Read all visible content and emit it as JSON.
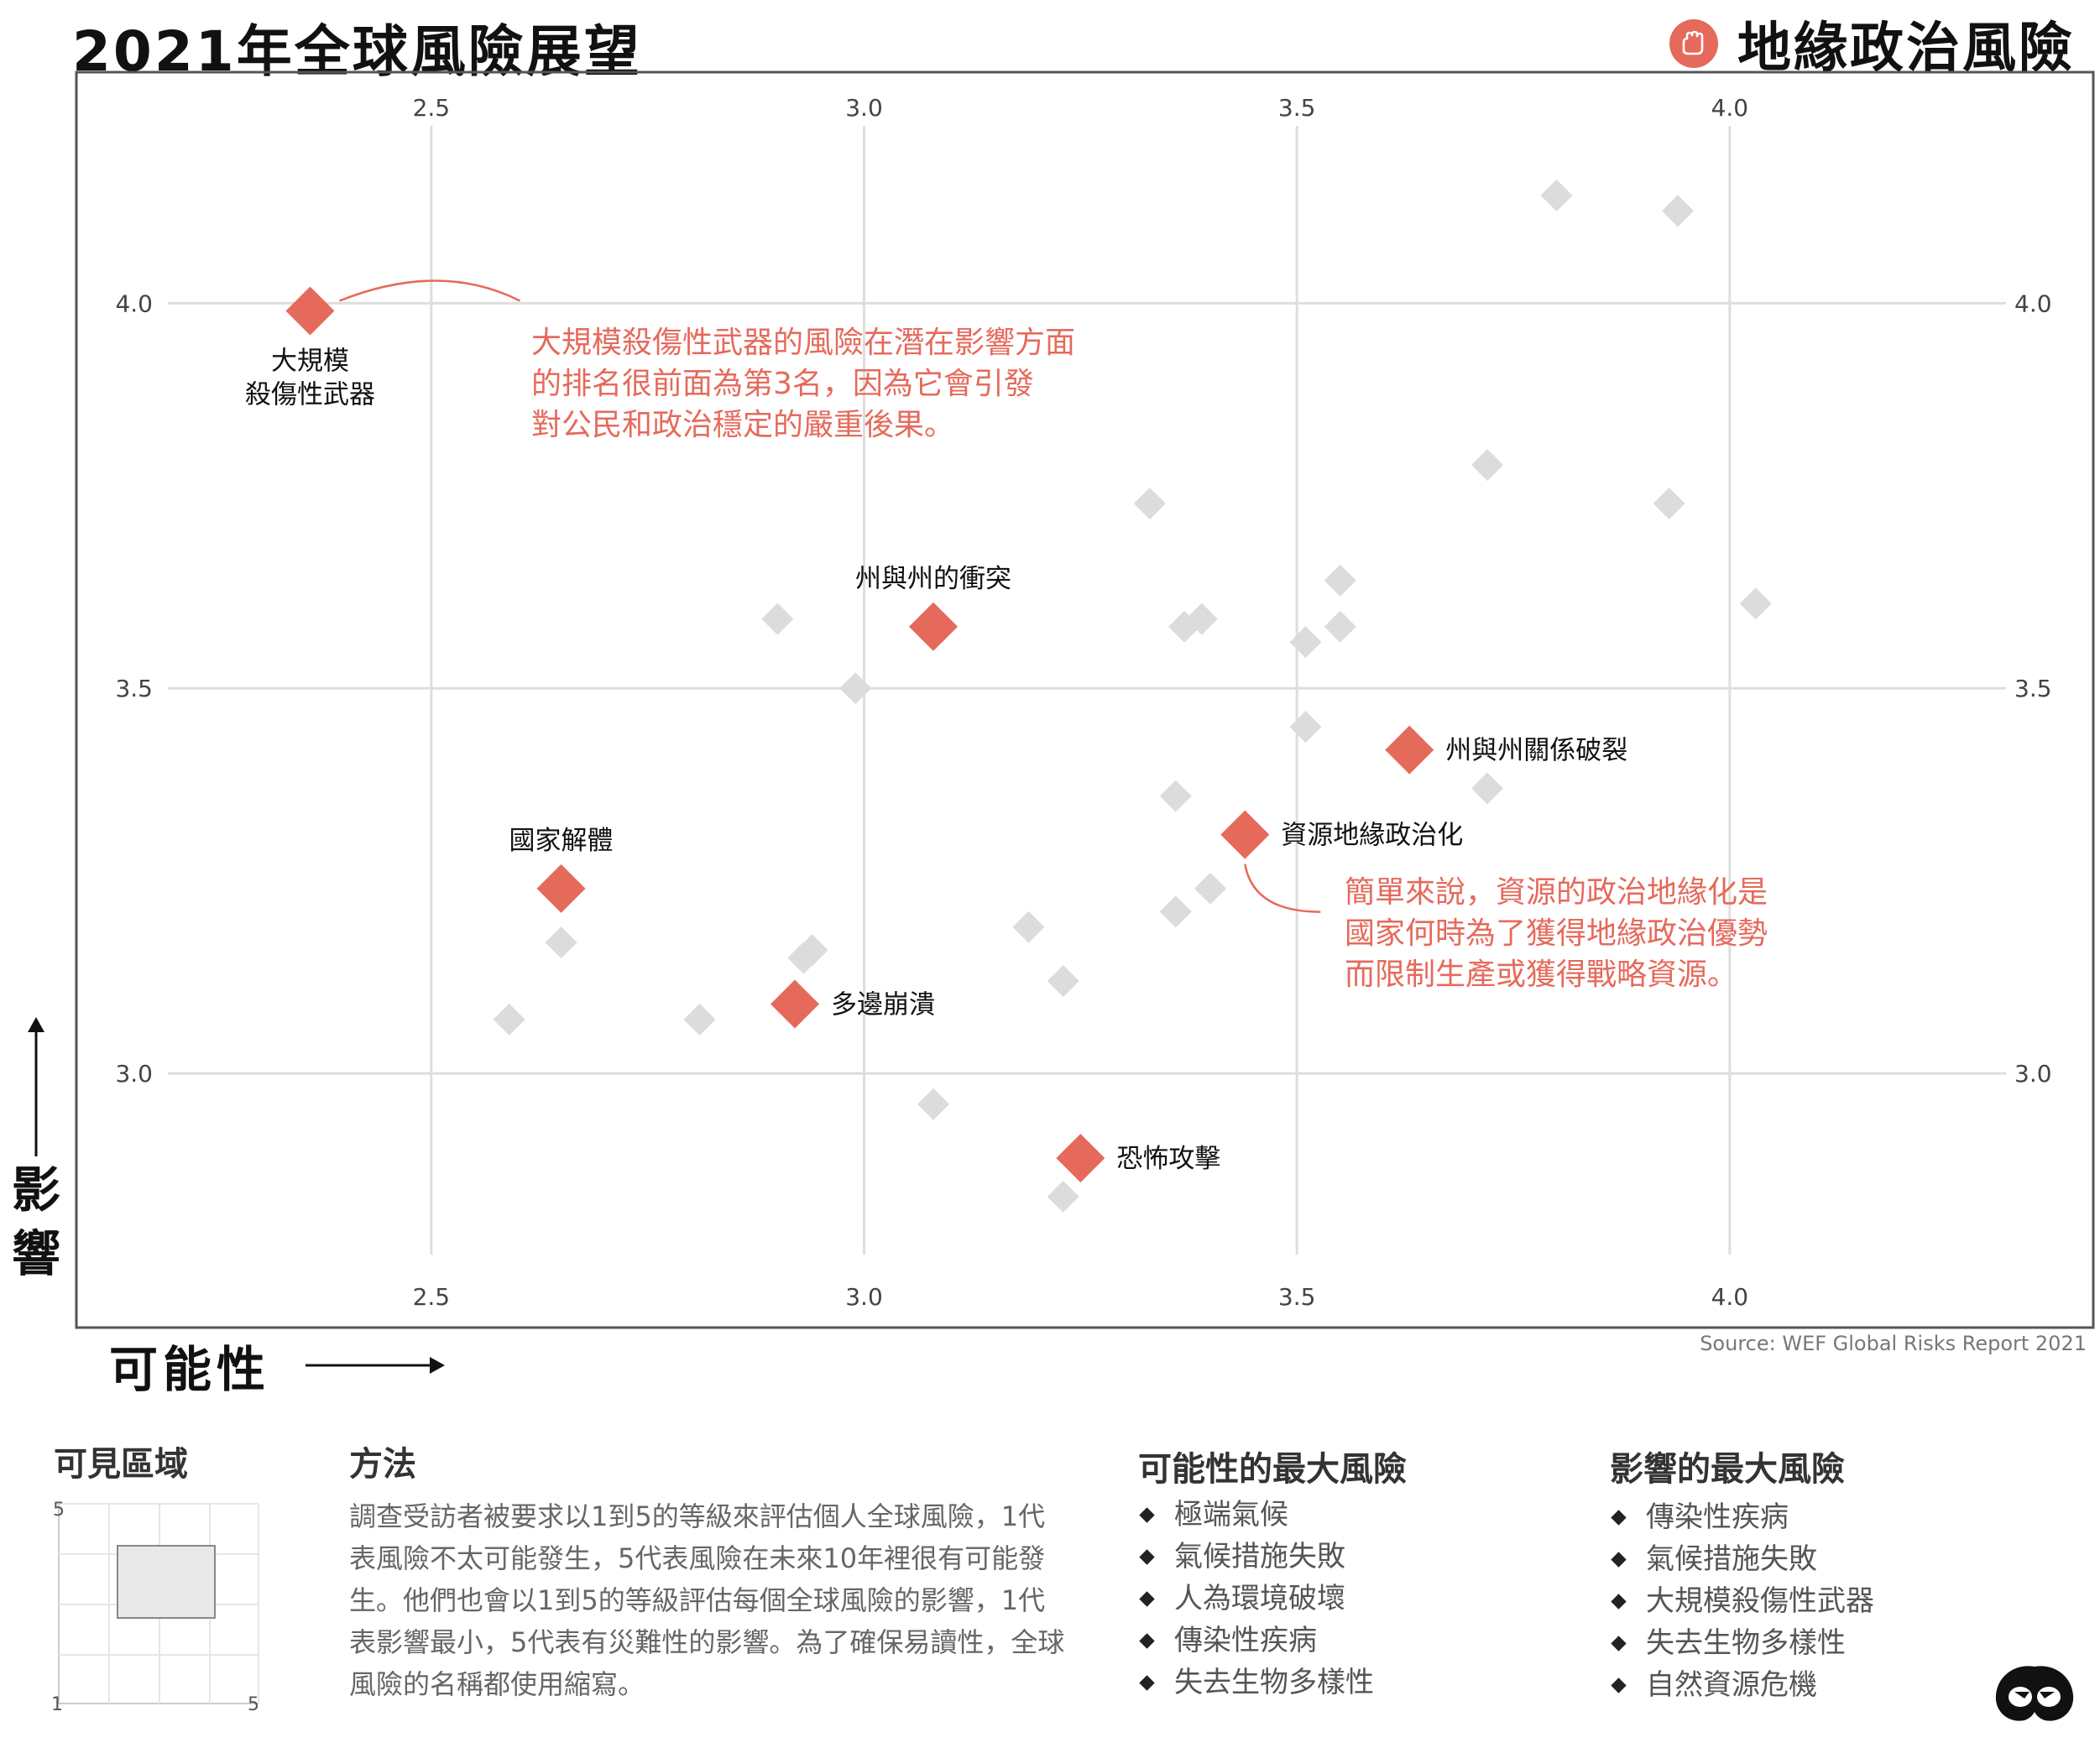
{
  "header": {
    "title": "2021年全球風險展望",
    "category": "地緣政治風險",
    "category_icon": "geopolitics-hand-icon",
    "accent_color": "#e56a5c"
  },
  "chart_data": {
    "type": "scatter",
    "xlabel": "可能性",
    "ylabel": "影響",
    "xlim": [
      2.09,
      4.42
    ],
    "ylim": [
      2.67,
      4.3
    ],
    "x_ticks": [
      2.5,
      3.0,
      3.5,
      4.0
    ],
    "x_tick_labels": [
      "2.5",
      "3.0",
      "3.5",
      "4.0"
    ],
    "y_ticks": [
      3.0,
      3.5,
      4.0
    ],
    "y_tick_labels": [
      "3.0",
      "3.5",
      "4.0"
    ],
    "grid": true,
    "highlight_color": "#e56a5c",
    "other_color": "#dcdcdc",
    "highlighted": [
      {
        "name": "大規模\n殺傷性武器",
        "x": 2.36,
        "y": 3.99,
        "label_pos": "below"
      },
      {
        "name": "州與州的衝突",
        "x": 3.08,
        "y": 3.58,
        "label_pos": "above"
      },
      {
        "name": "州與州關係破裂",
        "x": 3.63,
        "y": 3.42,
        "label_pos": "right"
      },
      {
        "name": "資源地緣政治化",
        "x": 3.44,
        "y": 3.31,
        "label_pos": "right"
      },
      {
        "name": "國家解體",
        "x": 2.65,
        "y": 3.24,
        "label_pos": "above"
      },
      {
        "name": "多邊崩潰",
        "x": 2.92,
        "y": 3.09,
        "label_pos": "right"
      },
      {
        "name": "恐怖攻擊",
        "x": 3.25,
        "y": 2.89,
        "label_pos": "right"
      }
    ],
    "others": [
      {
        "x": 3.8,
        "y": 4.14
      },
      {
        "x": 3.94,
        "y": 4.12
      },
      {
        "x": 3.72,
        "y": 3.79
      },
      {
        "x": 3.33,
        "y": 3.74
      },
      {
        "x": 3.93,
        "y": 3.74
      },
      {
        "x": 3.55,
        "y": 3.64
      },
      {
        "x": 4.03,
        "y": 3.61
      },
      {
        "x": 2.9,
        "y": 3.59
      },
      {
        "x": 3.37,
        "y": 3.58
      },
      {
        "x": 3.39,
        "y": 3.59
      },
      {
        "x": 3.55,
        "y": 3.58
      },
      {
        "x": 3.51,
        "y": 3.56
      },
      {
        "x": 2.99,
        "y": 3.5
      },
      {
        "x": 3.51,
        "y": 3.45
      },
      {
        "x": 3.36,
        "y": 3.36
      },
      {
        "x": 3.72,
        "y": 3.37
      },
      {
        "x": 3.4,
        "y": 3.24
      },
      {
        "x": 3.36,
        "y": 3.21
      },
      {
        "x": 3.19,
        "y": 3.19
      },
      {
        "x": 2.65,
        "y": 3.17
      },
      {
        "x": 2.93,
        "y": 3.15
      },
      {
        "x": 2.94,
        "y": 3.16
      },
      {
        "x": 3.23,
        "y": 3.12
      },
      {
        "x": 2.59,
        "y": 3.07
      },
      {
        "x": 2.81,
        "y": 3.07
      },
      {
        "x": 3.08,
        "y": 2.96
      },
      {
        "x": 3.23,
        "y": 2.84
      }
    ],
    "annotations": [
      {
        "target": 0,
        "lines": [
          "大規模殺傷性武器的風險在潛在影響方面",
          "的排名很前面為第3名，因為它會引發",
          "對公民和政治穩定的嚴重後果。"
        ]
      },
      {
        "target": 3,
        "lines": [
          "簡單來說，資源的政治地緣化是",
          "國家何時為了獲得地緣政治優勢",
          "而限制生產或獲得戰略資源。"
        ]
      }
    ]
  },
  "source": "Source: WEF Global Risks Report 2021",
  "visible_area": {
    "title": "可見區域",
    "min": "1",
    "max": "5",
    "y_max_label": "5",
    "y_min_label": "1",
    "x_max_label": "5"
  },
  "method": {
    "title": "方法",
    "text": "調查受訪者被要求以1到5的等級來評估個人全球風險，1代表風險不太可能發生，5代表風險在未來10年裡很有可能發生。他們也會以1到5的等級評估每個全球風險的影響，1代表影響最小，5代表有災難性的影響。為了確保易讀性，全球風險的名稱都使用縮寫。"
  },
  "top_likelihood": {
    "title": "可能性的最大風險",
    "items": [
      "極端氣候",
      "氣候措施失敗",
      "人為環境破壞",
      "傳染性疾病",
      "失去生物多樣性"
    ]
  },
  "top_impact": {
    "title": "影響的最大風險",
    "items": [
      "傳染性疾病",
      "氣候措施失敗",
      "大規模殺傷性武器",
      "失去生物多樣性",
      "自然資源危機"
    ]
  },
  "logo_icon": "visual-capitalist-logo-icon"
}
